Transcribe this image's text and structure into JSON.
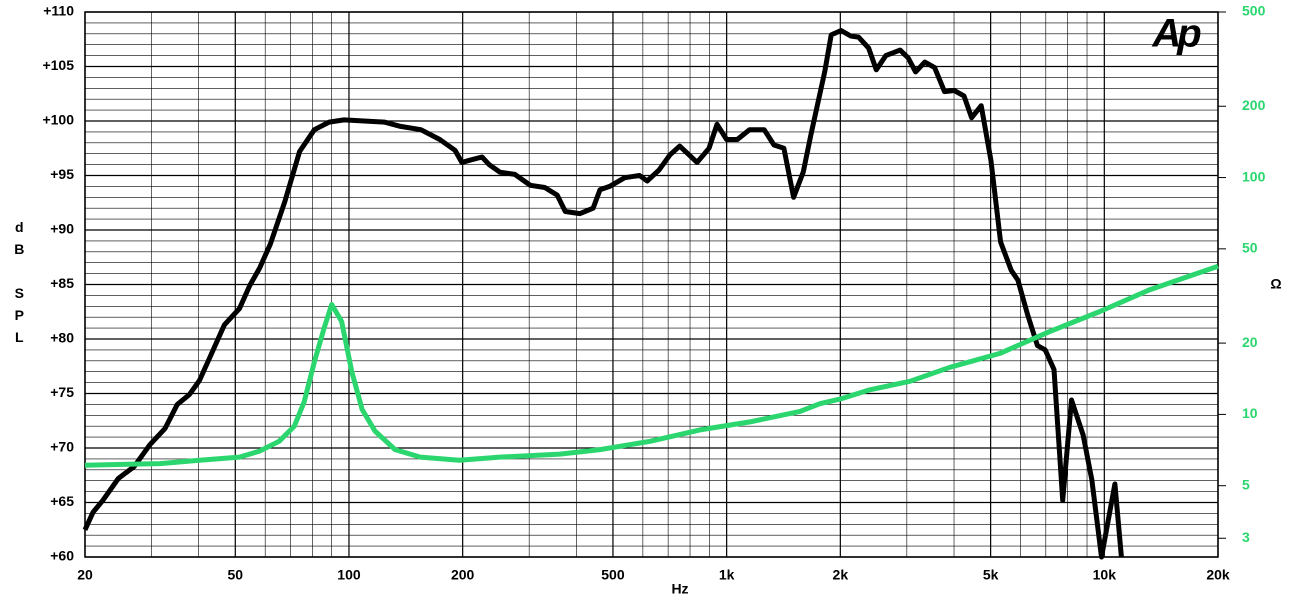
{
  "chart_data": {
    "type": "line",
    "logo": "Ap",
    "xlabel": "Hz",
    "ylabel": "dB SPL",
    "y2label": "Ω",
    "xscale": "log",
    "y2scale": "log",
    "grid": true,
    "xlim": [
      20,
      20000
    ],
    "ylim": [
      60,
      110
    ],
    "y2lim": [
      2.5,
      500
    ],
    "xticks": [
      20,
      50,
      100,
      200,
      500,
      {
        "value": 1000,
        "label": "1k"
      },
      {
        "value": 2000,
        "label": "2k"
      },
      {
        "value": 5000,
        "label": "5k"
      },
      {
        "value": 10000,
        "label": "10k"
      },
      {
        "value": 20000,
        "label": "20k"
      }
    ],
    "xminorticks": [
      30,
      40,
      60,
      70,
      80,
      90,
      300,
      400,
      600,
      700,
      800,
      900,
      3000,
      4000,
      6000,
      7000,
      8000,
      9000
    ],
    "yticks": [
      {
        "value": 60,
        "label": "+60"
      },
      {
        "value": 65,
        "label": "+65"
      },
      {
        "value": 70,
        "label": "+70"
      },
      {
        "value": 75,
        "label": "+75"
      },
      {
        "value": 80,
        "label": "+80"
      },
      {
        "value": 85,
        "label": "+85"
      },
      {
        "value": 90,
        "label": "+90"
      },
      {
        "value": 95,
        "label": "+95"
      },
      {
        "value": 100,
        "label": "+100"
      },
      {
        "value": 105,
        "label": "+105"
      },
      {
        "value": 110,
        "label": "+110"
      }
    ],
    "yminorticks": [
      61,
      62,
      63,
      64,
      66,
      67,
      68,
      69,
      71,
      72,
      73,
      74,
      76,
      77,
      78,
      79,
      81,
      82,
      83,
      84,
      86,
      87,
      88,
      89,
      91,
      92,
      93,
      94,
      96,
      97,
      98,
      99,
      101,
      102,
      103,
      104,
      106,
      107,
      108,
      109
    ],
    "y2ticks": [
      3,
      5,
      10,
      20,
      50,
      100,
      200,
      500
    ],
    "y2color": "#2bd66f",
    "series": [
      {
        "color": "#000000",
        "x": [
          20,
          21,
          22.3,
          24.5,
          27,
          29.7,
          32.6,
          35.1,
          37.8,
          40.2,
          42.8,
          46.8,
          51.3,
          54.6,
          58,
          61.9,
          67.6,
          74,
          81,
          88.6,
          97,
          124,
          137,
          155,
          174,
          191,
          199,
          209,
          225,
          235,
          251,
          275,
          302,
          330,
          356,
          374,
          409,
          443,
          462,
          490,
          537,
          588,
          616,
          662,
          708,
          751,
          835,
          898,
          943,
          1000,
          1067,
          1150,
          1257,
          1335,
          1418,
          1504,
          1595,
          1670,
          1818,
          1892,
          2009,
          2130,
          2234,
          2376,
          2490,
          2639,
          2880,
          3024,
          3164,
          3348,
          3553,
          3775,
          4005,
          4250,
          4452,
          4720,
          5008,
          5315,
          5668,
          5905,
          6267,
          6650,
          6975,
          7357,
          7760,
          8186,
          8785,
          9268,
          9833,
          10670,
          11100
        ],
        "values": [
          62.5,
          64.1,
          65.2,
          67.2,
          68.3,
          70.3,
          71.8,
          74.0,
          74.9,
          76.2,
          78.3,
          81.3,
          82.8,
          84.9,
          86.5,
          88.7,
          92.6,
          97.2,
          99.2,
          99.9,
          100.1,
          99.9,
          99.5,
          99.2,
          98.3,
          97.3,
          96.2,
          96.4,
          96.7,
          96.0,
          95.3,
          95.1,
          94.1,
          93.9,
          93.2,
          91.7,
          91.5,
          92.0,
          93.7,
          94.0,
          94.8,
          95.0,
          94.5,
          95.5,
          96.9,
          97.7,
          96.2,
          97.5,
          99.7,
          98.3,
          98.3,
          99.2,
          99.2,
          97.8,
          97.5,
          93.0,
          95.3,
          98.7,
          104.5,
          107.9,
          108.3,
          107.8,
          107.7,
          106.7,
          104.7,
          106.0,
          106.5,
          105.8,
          104.5,
          105.4,
          104.9,
          102.7,
          102.8,
          102.3,
          100.3,
          101.4,
          96.4,
          88.9,
          86.3,
          85.4,
          82.2,
          79.4,
          79.0,
          77.2,
          65.2,
          74.4,
          71.2,
          67.1,
          60.0,
          66.7,
          60.0
        ]
      },
      {
        "color": "#2bd66f",
        "axis": "y2",
        "x": [
          20,
          31.6,
          40.2,
          51.3,
          58,
          65.3,
          71.6,
          76.1,
          81,
          86.2,
          90,
          95.6,
          101.7,
          108.3,
          117.2,
          132.5,
          154.5,
          196,
          251,
          362,
          462,
          627,
          850,
          1153,
          1564,
          1766,
          1996,
          2394,
          3056,
          3900,
          5292,
          7180,
          9732,
          13200,
          20000
        ],
        "values": [
          6.1,
          6.2,
          6.4,
          6.6,
          7.0,
          7.7,
          8.9,
          11.3,
          16.7,
          23.5,
          29.1,
          24.7,
          15.2,
          10.5,
          8.5,
          7.1,
          6.6,
          6.4,
          6.6,
          6.8,
          7.1,
          7.7,
          8.6,
          9.3,
          10.3,
          11.1,
          11.6,
          12.7,
          13.8,
          15.8,
          18.1,
          22.4,
          27.2,
          33.6,
          42.2
        ]
      }
    ]
  }
}
